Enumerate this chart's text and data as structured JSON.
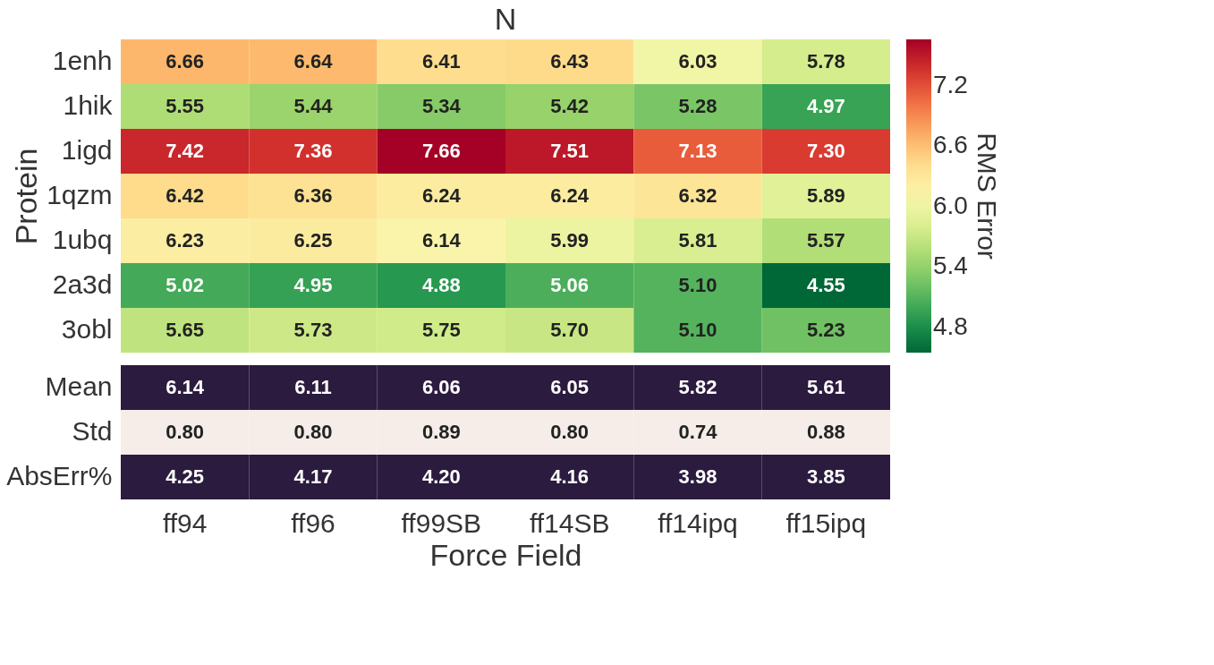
{
  "chart_data": [
    {
      "type": "heatmap",
      "title": "N",
      "ylabel": "Protein",
      "clabel": "RMS Error",
      "tick_labels": "y",
      "categories": [
        "ff94",
        "ff96",
        "ff99SB",
        "ff14SB",
        "ff14ipq",
        "ff15ipq"
      ],
      "y_categories": [
        "1enh",
        "1hik",
        "1igd",
        "1qzm",
        "1ubq",
        "2a3d",
        "3obl"
      ],
      "cells": [
        [
          6.66,
          6.64,
          6.41,
          6.43,
          6.03,
          5.78
        ],
        [
          5.55,
          5.44,
          5.34,
          5.42,
          5.28,
          4.97
        ],
        [
          7.42,
          7.36,
          7.66,
          7.51,
          7.13,
          7.3
        ],
        [
          6.42,
          6.36,
          6.24,
          6.24,
          6.32,
          5.89
        ],
        [
          6.23,
          6.25,
          6.14,
          5.99,
          5.81,
          5.57
        ],
        [
          5.02,
          4.95,
          4.88,
          5.06,
          5.1,
          4.55
        ],
        [
          5.65,
          5.73,
          5.75,
          5.7,
          5.1,
          5.23
        ]
      ],
      "cell_labels": [
        [
          "6.66",
          "6.64",
          "6.41",
          "6.43",
          "6.03",
          "5.78"
        ],
        [
          "5.55",
          "5.44",
          "5.34",
          "5.42",
          "5.28",
          "4.97"
        ],
        [
          "7.42",
          "7.36",
          "7.66",
          "7.51",
          "7.13",
          "7.30"
        ],
        [
          "6.42",
          "6.36",
          "6.24",
          "6.24",
          "6.32",
          "5.89"
        ],
        [
          "6.23",
          "6.25",
          "6.14",
          "5.99",
          "5.81",
          "5.57"
        ],
        [
          "5.02",
          "4.95",
          "4.88",
          "5.06",
          "5.10",
          "4.55"
        ],
        [
          "5.65",
          "5.73",
          "5.75",
          "5.70",
          "5.10",
          "5.23"
        ]
      ],
      "clim": [
        4.55,
        7.66
      ],
      "cticks": [
        4.8,
        5.4,
        {
          "value": 6,
          "label": "6.0"
        },
        6.6,
        7.2
      ]
    },
    {
      "type": "heatmap",
      "xlabel": "Force Field",
      "categories": [
        "ff94",
        "ff96",
        "ff99SB",
        "ff14SB",
        "ff14ipq",
        "ff15ipq"
      ],
      "y_categories": [
        "Mean",
        "Std",
        "AbsErr%"
      ],
      "cells": [
        [
          6.14,
          6.11,
          6.06,
          6.05,
          5.82,
          5.61
        ],
        [
          0.8,
          0.8,
          0.89,
          0.8,
          0.74,
          0.88
        ],
        [
          4.25,
          4.17,
          4.2,
          4.16,
          3.98,
          3.85
        ]
      ],
      "cell_labels": [
        [
          "6.14",
          "6.11",
          "6.06",
          "6.05",
          "5.82",
          "5.61"
        ],
        [
          "0.80",
          "0.80",
          "0.89",
          "0.80",
          "0.74",
          "0.88"
        ],
        [
          "4.25",
          "4.17",
          "4.20",
          "4.16",
          "3.98",
          "3.85"
        ]
      ],
      "colors": [
        "#2b1b3e",
        "#f6ece8",
        "#2b1b3e"
      ]
    }
  ]
}
